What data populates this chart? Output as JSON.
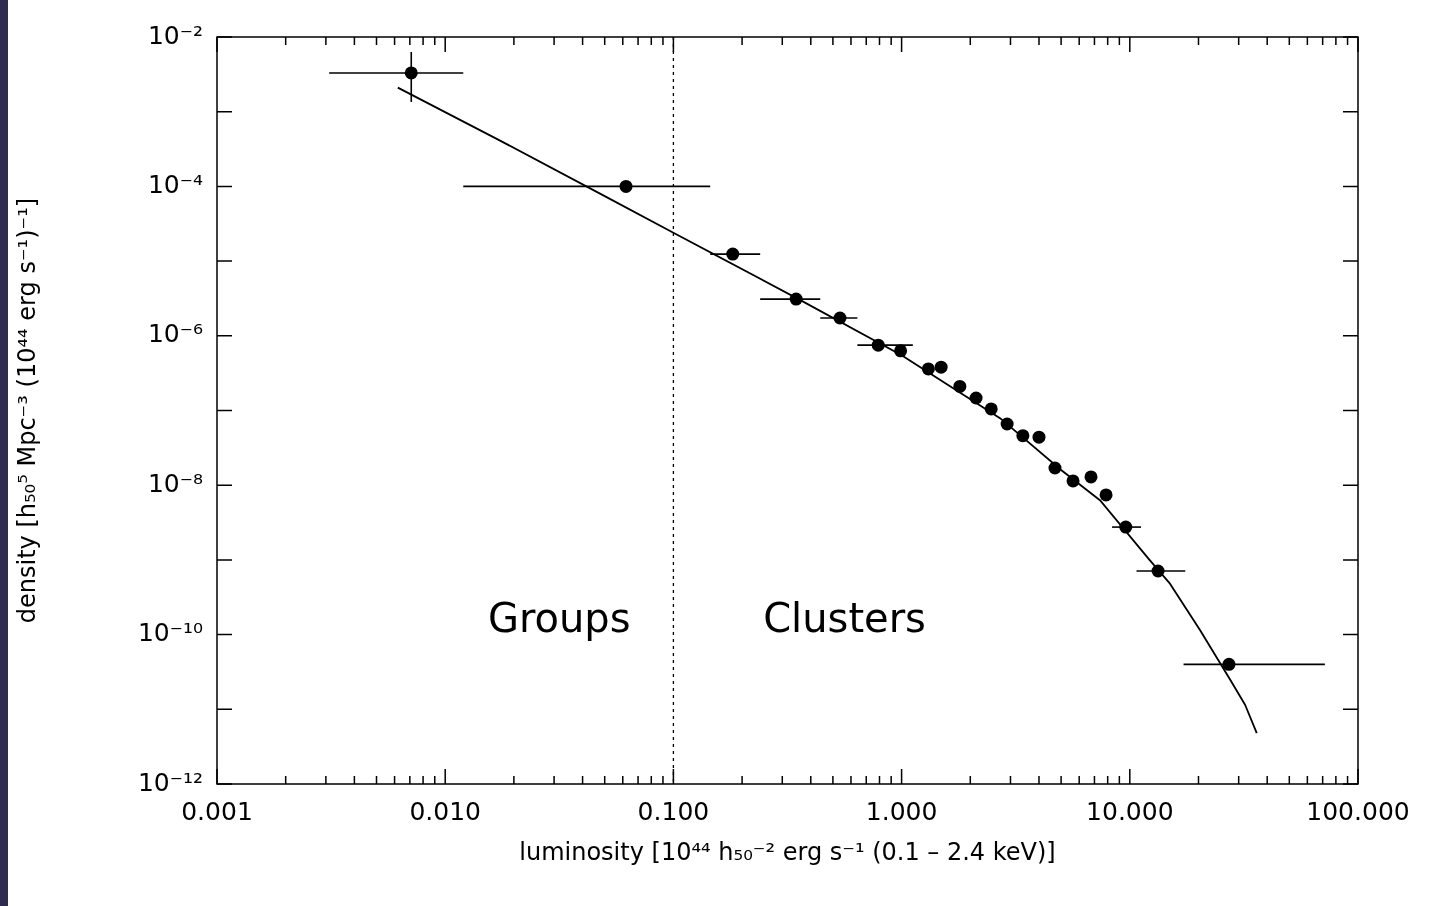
{
  "chart_data": {
    "type": "scatter",
    "xlabel": "luminosity [10⁴⁴ h₅₀⁻² erg s⁻¹ (0.1 – 2.4 keV)]",
    "ylabel": "density [h₅₀⁵ Mpc⁻³ (10⁴⁴ erg s⁻¹)⁻¹]",
    "log": "xy",
    "xlim": [
      0.001,
      100
    ],
    "ylim": [
      1e-12,
      0.01
    ],
    "xticks": [
      {
        "value": 0.001,
        "label": "0.001"
      },
      {
        "value": 0.002,
        "label": null
      },
      {
        "value": 0.003,
        "label": null
      },
      {
        "value": 0.004,
        "label": null
      },
      {
        "value": 0.005,
        "label": null
      },
      {
        "value": 0.006,
        "label": null
      },
      {
        "value": 0.007,
        "label": null
      },
      {
        "value": 0.008,
        "label": null
      },
      {
        "value": 0.009,
        "label": null
      },
      {
        "value": 0.01,
        "label": "0.010"
      },
      {
        "value": 0.02,
        "label": null
      },
      {
        "value": 0.03,
        "label": null
      },
      {
        "value": 0.04,
        "label": null
      },
      {
        "value": 0.05,
        "label": null
      },
      {
        "value": 0.06,
        "label": null
      },
      {
        "value": 0.07,
        "label": null
      },
      {
        "value": 0.08,
        "label": null
      },
      {
        "value": 0.09,
        "label": null
      },
      {
        "value": 0.1,
        "label": "0.100"
      },
      {
        "value": 0.2,
        "label": null
      },
      {
        "value": 0.3,
        "label": null
      },
      {
        "value": 0.4,
        "label": null
      },
      {
        "value": 0.5,
        "label": null
      },
      {
        "value": 0.6,
        "label": null
      },
      {
        "value": 0.7,
        "label": null
      },
      {
        "value": 0.8,
        "label": null
      },
      {
        "value": 0.9,
        "label": null
      },
      {
        "value": 1,
        "label": "1.000"
      },
      {
        "value": 2,
        "label": null
      },
      {
        "value": 3,
        "label": null
      },
      {
        "value": 4,
        "label": null
      },
      {
        "value": 5,
        "label": null
      },
      {
        "value": 6,
        "label": null
      },
      {
        "value": 7,
        "label": null
      },
      {
        "value": 8,
        "label": null
      },
      {
        "value": 9,
        "label": null
      },
      {
        "value": 10,
        "label": "10.000"
      },
      {
        "value": 20,
        "label": null
      },
      {
        "value": 30,
        "label": null
      },
      {
        "value": 40,
        "label": null
      },
      {
        "value": 50,
        "label": null
      },
      {
        "value": 60,
        "label": null
      },
      {
        "value": 70,
        "label": null
      },
      {
        "value": 80,
        "label": null
      },
      {
        "value": 90,
        "label": null
      },
      {
        "value": 100,
        "label": "100.000"
      }
    ],
    "yticks": [
      {
        "value": 1e-12,
        "label": "10⁻¹²"
      },
      {
        "value": 1e-11,
        "label": null
      },
      {
        "value": 1e-10,
        "label": "10⁻¹⁰"
      },
      {
        "value": 1e-09,
        "label": null
      },
      {
        "value": 1e-08,
        "label": "10⁻⁸"
      },
      {
        "value": 1e-07,
        "label": null
      },
      {
        "value": 1e-06,
        "label": "10⁻⁶"
      },
      {
        "value": 1e-05,
        "label": null
      },
      {
        "value": 0.0001,
        "label": "10⁻⁴"
      },
      {
        "value": 0.001,
        "label": null
      },
      {
        "value": 0.01,
        "label": "10⁻²"
      }
    ],
    "series": [
      {
        "type": "scatter",
        "color": "#000000",
        "marker": "circle",
        "x": [
          0.0071,
          0.062,
          0.182,
          0.345,
          0.537,
          0.79,
          0.99,
          1.31,
          1.49,
          1.8,
          2.12,
          2.47,
          2.9,
          3.4,
          4.0,
          4.7,
          5.64,
          6.76,
          7.87,
          9.6,
          13.3,
          27.2
        ],
        "values": [
          0.0033,
          0.0001,
          1.24e-05,
          3.1e-06,
          1.73e-06,
          7.5e-07,
          6.3e-07,
          3.6e-07,
          3.8e-07,
          2.1e-07,
          1.47e-07,
          1.05e-07,
          6.6e-08,
          4.6e-08,
          4.4e-08,
          1.7e-08,
          1.14e-08,
          1.29e-08,
          7.4e-09,
          2.75e-09,
          7.1e-10,
          4e-11
        ],
        "xerrors": [
          [
            0.0031,
            0.012
          ],
          [
            0.012,
            0.145
          ],
          [
            0.145,
            0.24
          ],
          [
            0.24,
            0.44
          ],
          [
            0.44,
            0.64
          ],
          [
            0.64,
            1.12
          ],
          null,
          null,
          null,
          null,
          null,
          null,
          null,
          null,
          null,
          null,
          null,
          null,
          null,
          [
            8.36,
            11.2
          ],
          [
            10.7,
            17.5
          ],
          [
            17.2,
            71.6
          ]
        ],
        "errors": [
          [
            0.00135,
            0.0063
          ],
          null,
          null,
          null,
          null,
          null,
          null,
          null,
          null,
          null,
          null,
          null,
          null,
          null,
          null,
          null,
          null,
          null,
          null,
          null,
          null,
          null
        ]
      },
      {
        "type": "line",
        "color": "#000000",
        "marker": "none",
        "line_style": "solid",
        "x": [
          0.0062,
          0.0174,
          0.05,
          0.1,
          0.36,
          1.0,
          2.7,
          5.0,
          7.4,
          12.2,
          15,
          20.3,
          27.5,
          32,
          36
        ],
        "values": [
          0.0021,
          0.00041,
          7.4e-05,
          2.4e-05,
          3e-06,
          5.5e-07,
          7.9e-08,
          1.6e-08,
          6.3e-09,
          1e-09,
          4.8e-10,
          1.15e-10,
          2.5e-11,
          1.15e-11,
          4.8e-12
        ]
      }
    ],
    "ref_lines": [
      {
        "axis": "x",
        "value": 0.1,
        "line_style": "dotted",
        "color": "#000000"
      }
    ],
    "annotations": [
      "Groups",
      "Clusters"
    ]
  }
}
